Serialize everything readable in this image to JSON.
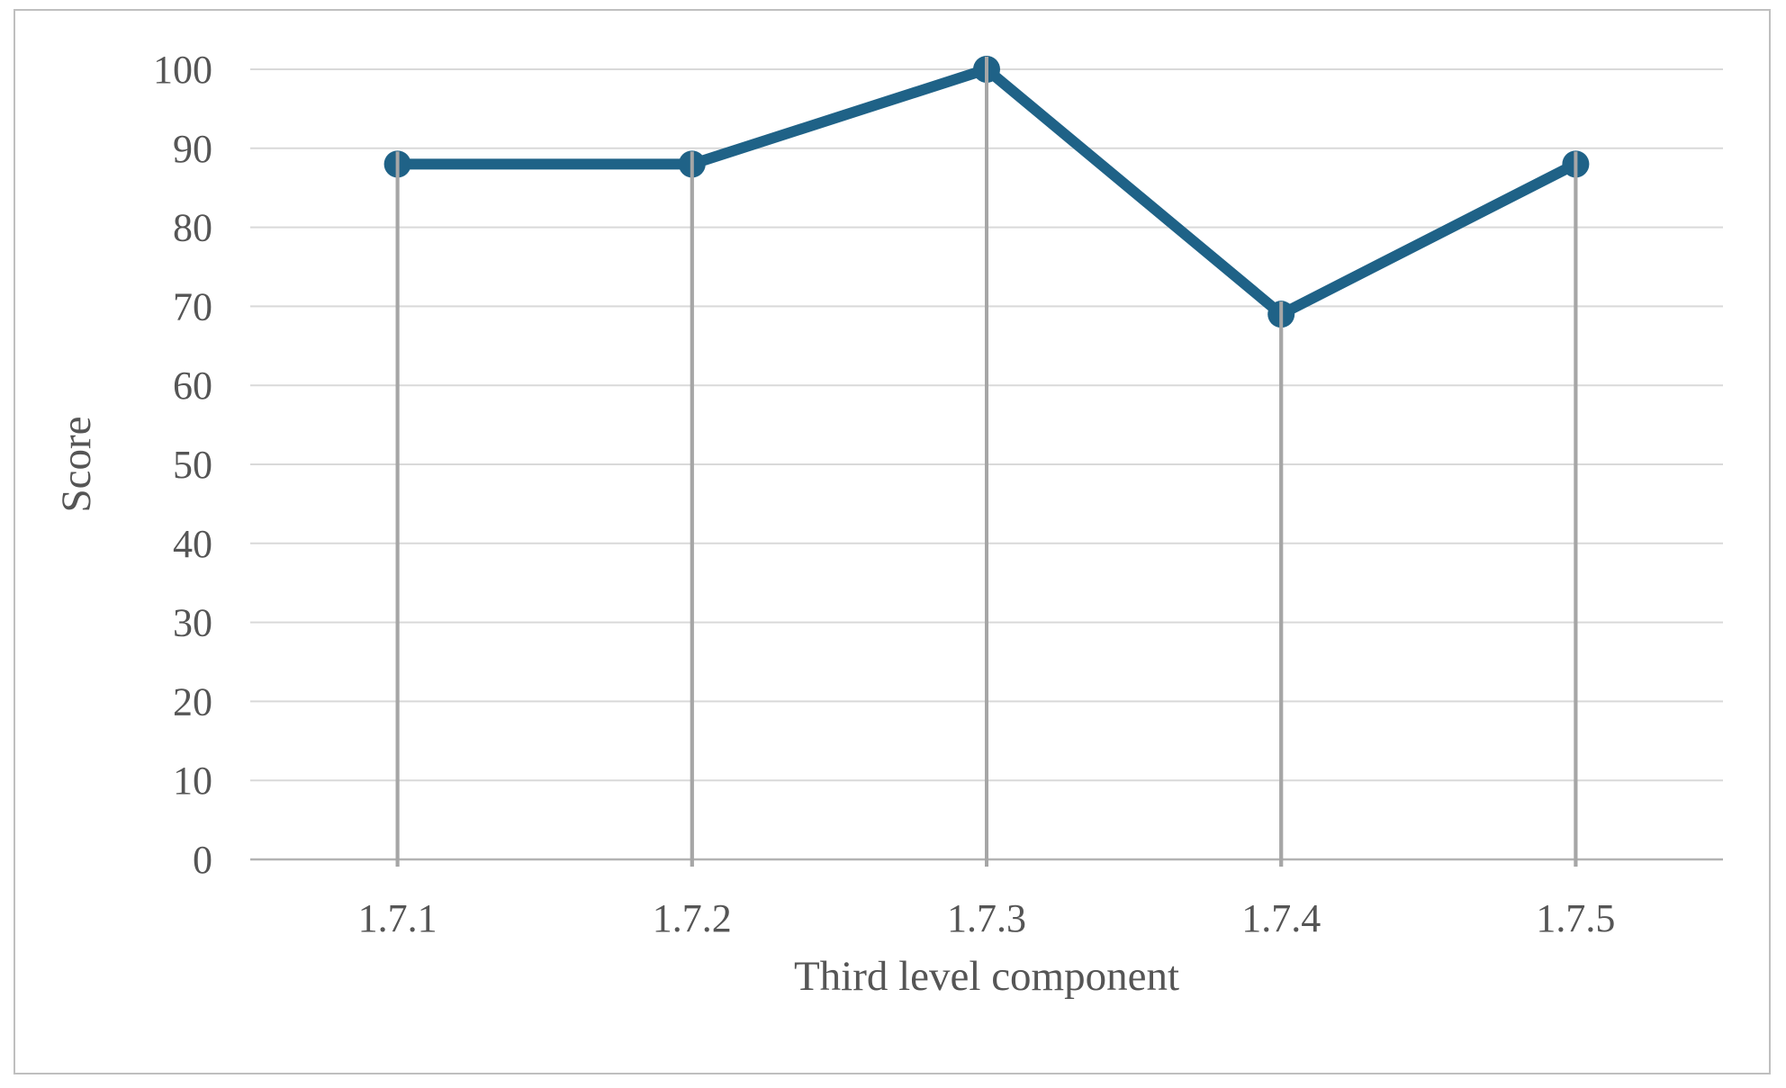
{
  "chart_data": {
    "type": "line",
    "categories": [
      "1.7.1",
      "1.7.2",
      "1.7.3",
      "1.7.4",
      "1.7.5"
    ],
    "series": [
      {
        "name": "Score",
        "values": [
          88,
          88,
          100,
          69,
          88
        ]
      }
    ],
    "title": "",
    "xlabel": "Third level component",
    "ylabel": "Score",
    "ylim": [
      0,
      100
    ],
    "ytick_step": 10,
    "yticks": [
      0,
      10,
      20,
      30,
      40,
      50,
      60,
      70,
      80,
      90,
      100
    ],
    "grid": "horizontal",
    "legend_position": "none",
    "features": {
      "drop_lines": true,
      "marker_shape": "circle"
    },
    "colors": {
      "line": "#1f6287",
      "marker": "#1f6287",
      "gridline": "#d9d9d9",
      "axis_line": "#b3b3b3",
      "drop_line": "#a6a6a6",
      "text": "#555555",
      "frame_border": "#bfbfbf",
      "background": "#ffffff"
    }
  }
}
